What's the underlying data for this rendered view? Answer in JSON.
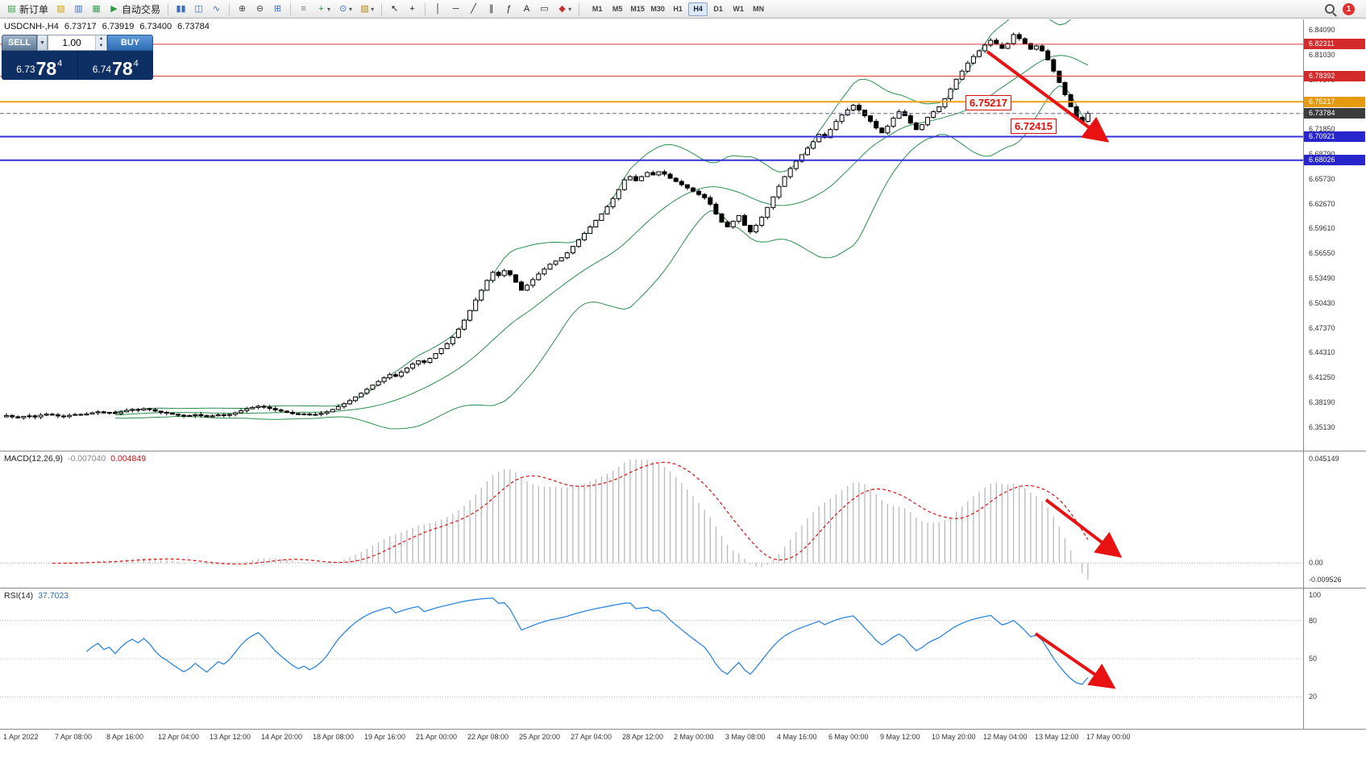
{
  "toolbar": {
    "items": [
      {
        "t": "button",
        "name": "new-order-button",
        "glyph": "▤",
        "gc": "#2e9e44",
        "label": "新订单"
      },
      {
        "t": "icon",
        "name": "profiles-icon",
        "glyph": "▨",
        "gc": "#d2a106"
      },
      {
        "t": "icon",
        "name": "market-watch-icon",
        "glyph": "▥",
        "gc": "#3a6ec0"
      },
      {
        "t": "icon",
        "name": "navigator-icon",
        "glyph": "▦",
        "gc": "#3a9e5a"
      },
      {
        "t": "button",
        "name": "auto-trading-button",
        "glyph": "▶",
        "gc": "#2e9e44",
        "label": "自动交易"
      },
      {
        "t": "sep"
      },
      {
        "t": "icon",
        "name": "bar-chart-icon",
        "glyph": "▮▮",
        "gc": "#3a6ec0"
      },
      {
        "t": "icon",
        "name": "candlestick-chart-icon",
        "glyph": "◫",
        "gc": "#3a6ec0"
      },
      {
        "t": "icon",
        "name": "line-chart-icon",
        "glyph": "∿",
        "gc": "#3a6ec0"
      },
      {
        "t": "sep"
      },
      {
        "t": "icon",
        "name": "zoom-in-icon",
        "glyph": "⊕",
        "gc": "#444"
      },
      {
        "t": "icon",
        "name": "zoom-out-icon",
        "glyph": "⊖",
        "gc": "#444"
      },
      {
        "t": "icon",
        "name": "tile-windows-icon",
        "glyph": "⊞",
        "gc": "#3a6ec0"
      },
      {
        "t": "sep"
      },
      {
        "t": "icon",
        "name": "auto-arrange-icon",
        "glyph": "≡",
        "gc": "#777"
      },
      {
        "t": "icon",
        "name": "indicators-icon",
        "glyph": "+",
        "gc": "#1f9e3a",
        "dd": true
      },
      {
        "t": "icon",
        "name": "periods-icon",
        "glyph": "⊙",
        "gc": "#3a6ec0",
        "dd": true
      },
      {
        "t": "icon",
        "name": "templates-icon",
        "glyph": "▧",
        "gc": "#b8860b",
        "dd": true
      },
      {
        "t": "sep"
      },
      {
        "t": "icon",
        "name": "cursor-icon",
        "glyph": "↖",
        "gc": "#222"
      },
      {
        "t": "icon",
        "name": "crosshair-icon",
        "glyph": "+",
        "gc": "#222"
      },
      {
        "t": "sep"
      },
      {
        "t": "icon",
        "name": "vertical-line-icon",
        "glyph": "│",
        "gc": "#222"
      },
      {
        "t": "icon",
        "name": "horizontal-line-icon",
        "glyph": "─",
        "gc": "#222"
      },
      {
        "t": "icon",
        "name": "trendline-icon",
        "glyph": "╱",
        "gc": "#222"
      },
      {
        "t": "icon",
        "name": "channel-icon",
        "glyph": "∥",
        "gc": "#222"
      },
      {
        "t": "icon",
        "name": "fibonacci-icon",
        "glyph": "ƒ",
        "gc": "#222"
      },
      {
        "t": "icon",
        "name": "text-icon",
        "glyph": "A",
        "gc": "#222"
      },
      {
        "t": "icon",
        "name": "text-label-icon",
        "glyph": "▭",
        "gc": "#222"
      },
      {
        "t": "icon",
        "name": "arrows-icon",
        "glyph": "◆",
        "gc": "#c03333",
        "dd": true
      },
      {
        "t": "sep"
      }
    ],
    "timeframes": [
      "M1",
      "M5",
      "M15",
      "M30",
      "H1",
      "H4",
      "D1",
      "W1",
      "MN"
    ],
    "active_timeframe": "H4",
    "notification_count": "1"
  },
  "chart": {
    "header": {
      "symbol_period": "USDCNH-,H4",
      "open": "6.73717",
      "high": "6.73919",
      "low": "6.73400",
      "close": "6.73784"
    },
    "one_click": {
      "sell_label": "SELL",
      "buy_label": "BUY",
      "volume": "1.00",
      "sell": {
        "main": "6.73",
        "big": "78",
        "sup": "4"
      },
      "buy": {
        "main": "6.74",
        "big": "78",
        "sup": "4"
      }
    },
    "price_axis": {
      "labels": [
        "6.84090",
        "6.81030",
        "6.77970",
        "6.74910",
        "6.71850",
        "6.68790",
        "6.65730",
        "6.62670",
        "6.59610",
        "6.56550",
        "6.53490",
        "6.50430",
        "6.47370",
        "6.44310",
        "6.41250",
        "6.38190",
        "6.35130"
      ],
      "badges": [
        {
          "text": "6.82311",
          "color": "#d42a2a"
        },
        {
          "text": "6.78392",
          "color": "#d42a2a"
        },
        {
          "text": "6.75217",
          "color": "#e59a10"
        },
        {
          "text": "6.73784",
          "color": "#3c3c3c"
        },
        {
          "text": "6.70921",
          "color": "#2626cc"
        },
        {
          "text": "6.68026",
          "color": "#2626cc"
        }
      ]
    },
    "hlines": [
      {
        "price": 6.82311,
        "color": "#e03434",
        "w": 1
      },
      {
        "price": 6.78392,
        "color": "#e03434",
        "w": 1
      },
      {
        "price": 6.75217,
        "color": "#f0a010",
        "w": 2
      },
      {
        "price": 6.70921,
        "color": "#3030d8",
        "w": 2
      },
      {
        "price": 6.68026,
        "color": "#3030d8",
        "w": 2
      }
    ],
    "bid_line": {
      "price": 6.73784,
      "color": "#666688"
    },
    "annotations": [
      {
        "name": "price-label-1",
        "text": "6.75217"
      },
      {
        "name": "price-label-2",
        "text": "6.72415"
      }
    ],
    "arrows": [
      "main-chart-down-arrow",
      "macd-down-arrow",
      "rsi-down-arrow"
    ],
    "time_axis": [
      "1 Apr 2022",
      "7 Apr 08:00",
      "8 Apr 16:00",
      "12 Apr 04:00",
      "13 Apr 12:00",
      "14 Apr 20:00",
      "18 Apr 08:00",
      "19 Apr 16:00",
      "21 Apr 00:00",
      "22 Apr 08:00",
      "25 Apr 20:00",
      "27 Apr 04:00",
      "28 Apr 12:00",
      "2 May 00:00",
      "3 May 08:00",
      "4 May 16:00",
      "6 May 00:00",
      "9 May 12:00",
      "10 May 20:00",
      "12 May 04:00",
      "13 May 12:00",
      "17 May 00:00"
    ]
  },
  "indicators": {
    "macd": {
      "label": "MACD(12,26,9)",
      "main_value": "-0.007040",
      "signal_value": "0.004849",
      "scale_top": "0.045149",
      "scale_zero": "0.00",
      "scale_bottom": "-0.009526"
    },
    "rsi": {
      "label": "RSI(14)",
      "value": "37.7023",
      "levels": [
        "100",
        "80",
        "50",
        "20"
      ]
    }
  },
  "chart_data": {
    "type": "candlestick",
    "symbol": "USDCNH-",
    "timeframe": "H4",
    "title": "USDCNH- H4 with Bollinger Bands(20,2), MACD(12,26,9), RSI(14)",
    "ylim": [
      6.327,
      6.855
    ],
    "key_levels": {
      "resistance": [
        6.82311,
        6.78392
      ],
      "pivot": 6.75217,
      "support": [
        6.70921,
        6.68026
      ],
      "recent_low": 6.72415,
      "bid": 6.73784
    },
    "macd_scale": {
      "max": 0.045149,
      "min": -0.009526,
      "main": -0.00704,
      "signal": 0.004849
    },
    "rsi_value": 37.7023,
    "closes": [
      6.3655,
      6.364,
      6.3628,
      6.3645,
      6.3652,
      6.3638,
      6.366,
      6.3672,
      6.3665,
      6.365,
      6.3642,
      6.3658,
      6.367,
      6.3662,
      6.3675,
      6.369,
      6.3702,
      6.3688,
      6.3695,
      6.368,
      6.37,
      6.3718,
      6.373,
      6.3722,
      6.374,
      6.3728,
      6.371,
      6.3695,
      6.3685,
      6.3672,
      6.366,
      6.3648,
      6.3655,
      6.3668,
      6.3654,
      6.364,
      6.3652,
      6.3665,
      6.3658,
      6.367,
      6.369,
      6.3715,
      6.3738,
      6.3755,
      6.377,
      6.3758,
      6.3742,
      6.3725,
      6.371,
      6.3695,
      6.368,
      6.3668,
      6.3675,
      6.3662,
      6.367,
      6.3682,
      6.37,
      6.373,
      6.3765,
      6.38,
      6.384,
      6.3885,
      6.393,
      6.398,
      6.403,
      6.4075,
      6.412,
      6.416,
      6.414,
      6.419,
      6.424,
      6.429,
      6.433,
      6.431,
      6.436,
      6.442,
      6.448,
      6.454,
      6.462,
      6.472,
      6.483,
      6.495,
      6.508,
      6.52,
      6.532,
      6.542,
      6.538,
      6.544,
      6.539,
      6.53,
      6.52,
      6.526,
      6.533,
      6.54,
      6.546,
      6.552,
      6.556,
      6.56,
      6.566,
      6.574,
      6.582,
      6.59,
      6.598,
      6.606,
      6.614,
      6.623,
      6.633,
      6.644,
      6.656,
      6.66,
      6.655,
      6.66,
      6.665,
      6.662,
      6.666,
      6.663,
      6.658,
      6.654,
      6.65,
      6.646,
      6.642,
      6.638,
      6.634,
      6.626,
      6.614,
      6.604,
      6.598,
      6.605,
      6.612,
      6.6,
      6.592,
      6.6,
      6.61,
      6.622,
      6.635,
      6.648,
      6.66,
      6.67,
      6.679,
      6.687,
      6.695,
      6.703,
      6.712,
      6.708,
      6.718,
      6.728,
      6.736,
      6.742,
      6.748,
      6.742,
      6.735,
      6.728,
      6.72,
      6.714,
      6.722,
      6.732,
      6.74,
      6.735,
      6.726,
      6.718,
      6.724,
      6.733,
      6.74,
      6.746,
      6.756,
      6.768,
      6.78,
      6.79,
      6.8,
      6.808,
      6.815,
      6.822,
      6.828,
      6.823,
      6.818,
      6.824,
      6.835,
      6.83,
      6.824,
      6.817,
      6.821,
      6.815,
      6.804,
      6.79,
      6.776,
      6.761,
      6.746,
      6.733,
      6.728,
      6.73784
    ]
  }
}
